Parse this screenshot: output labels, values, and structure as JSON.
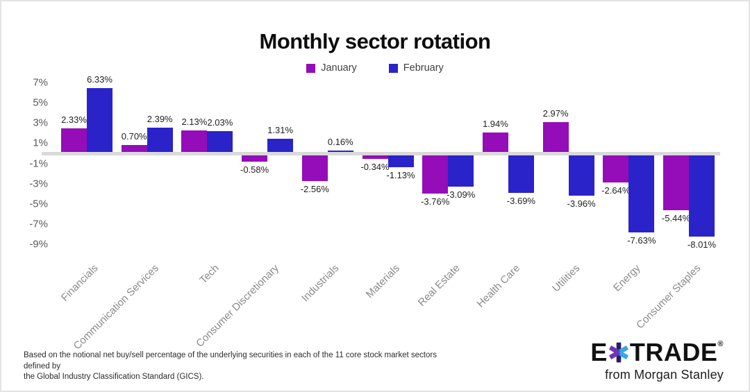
{
  "chart": {
    "title": "Monthly sector rotation"
  },
  "chart_data": {
    "type": "bar",
    "title": "Monthly sector rotation",
    "categories": [
      "Financials",
      "Communication Services",
      "Tech",
      "Consumer Discretionary",
      "Industrials",
      "Materials",
      "Real Estate",
      "Health Care",
      "Utilities",
      "Energy",
      "Consumer Staples"
    ],
    "series": [
      {
        "name": "January",
        "color": "#940DB8",
        "values": [
          2.33,
          0.7,
          2.13,
          -0.58,
          -2.56,
          -0.34,
          -3.76,
          1.94,
          2.97,
          -2.64,
          -5.44
        ],
        "value_labels": [
          "2.33%",
          "0.70%",
          "2.13%",
          "-0.58%",
          "-2.56%",
          "-0.34%",
          "-3.76%",
          "1.94%",
          "2.97%",
          "-2.64%",
          "-5.44%"
        ]
      },
      {
        "name": "February",
        "color": "#2A23C9",
        "values": [
          6.33,
          2.39,
          2.03,
          1.31,
          0.16,
          -1.13,
          -3.09,
          -3.69,
          -3.96,
          -7.63,
          -8.01
        ],
        "value_labels": [
          "6.33%",
          "2.39%",
          "2.03%",
          "1.31%",
          "0.16%",
          "-1.13%",
          "-3.09%",
          "-3.69%",
          "-3.96%",
          "-7.63%",
          "-8.01%"
        ]
      }
    ],
    "y_tick_labels": [
      "7%",
      "5%",
      "3%",
      "1%",
      "-1%",
      "-3%",
      "-5%",
      "-7%",
      "-9%"
    ],
    "y_tick_values": [
      7,
      5,
      3,
      1,
      -1,
      -3,
      -5,
      -7,
      -9
    ],
    "ylim": [
      -9,
      7
    ],
    "xlabel": "",
    "ylabel": "",
    "grid": false,
    "legend_position": "top",
    "axis_line_color": "#d9d9d9"
  },
  "footer": {
    "note_lines": [
      "Based on the notional net buy/sell percentage of the underlying securities in each of the 11 core stock market sectors defined by",
      "the Global Industry Classification Standard (GICS)."
    ]
  },
  "branding": {
    "logo_e": "E",
    "logo_trade": "TRADE",
    "registered": "®",
    "from_text": "from Morgan Stanley",
    "star_colors": {
      "navy": "#232064",
      "cyan": "#35A8E0",
      "purple": "#6E35B5"
    }
  }
}
